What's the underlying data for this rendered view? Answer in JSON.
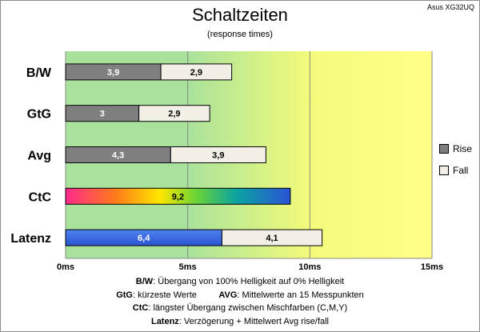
{
  "chart_data": {
    "type": "bar",
    "orientation": "horizontal",
    "stacked": true,
    "title": "Schaltzeiten",
    "subtitle": "(response times)",
    "brand": "Asus XG32UQ",
    "categories": [
      "B/W",
      "GtG",
      "Avg",
      "CtC",
      "Latenz"
    ],
    "series": [
      {
        "name": "Rise",
        "color": "#7f7f7f",
        "values": [
          3.9,
          3,
          4.3,
          null,
          6.4
        ],
        "labels": [
          "3,9",
          "3",
          "4,3",
          "",
          "6,4"
        ]
      },
      {
        "name": "Fall",
        "color": "#f2efe6",
        "values": [
          2.9,
          2.9,
          3.9,
          null,
          4.1
        ],
        "labels": [
          "2,9",
          "2,9",
          "3,9",
          "",
          "4,1"
        ]
      }
    ],
    "special_bars": [
      {
        "category": "CtC",
        "value": 9.2,
        "label": "9,2",
        "fill": "rainbow"
      },
      {
        "category": "Latenz",
        "segment": "Rise",
        "fill": "blue"
      }
    ],
    "xlim": [
      0,
      15
    ],
    "xticks": [
      0,
      5,
      10,
      15
    ],
    "xtick_labels": [
      "0ms",
      "5ms",
      "10ms",
      "15ms"
    ],
    "background_zones": [
      {
        "from": 0,
        "to": 5,
        "color": "#a9e29c"
      },
      {
        "from": 5,
        "to": 10,
        "color": "gradient-green-yellow"
      },
      {
        "from": 10,
        "to": 15,
        "color": "#ffff88"
      }
    ],
    "legend_position": "right",
    "grid": "vertical"
  },
  "notes": [
    {
      "bold": "B/W",
      "text": ":  Übergang von 100% Helligkeit auf 0% Helligkeit"
    },
    {
      "bold": "GtG",
      "text": ": kürzeste  Werte",
      "bold2": "AVG",
      "text2": ": Mittelwerte  an 15 Messpunkten"
    },
    {
      "bold": "CtC",
      "text": ": längster Übergang  zwischen Mischfarben  (C,M,Y)"
    },
    {
      "bold": "Latenz",
      "text": ": Verzögerung  + Mittelwert Avg rise/fall"
    }
  ]
}
